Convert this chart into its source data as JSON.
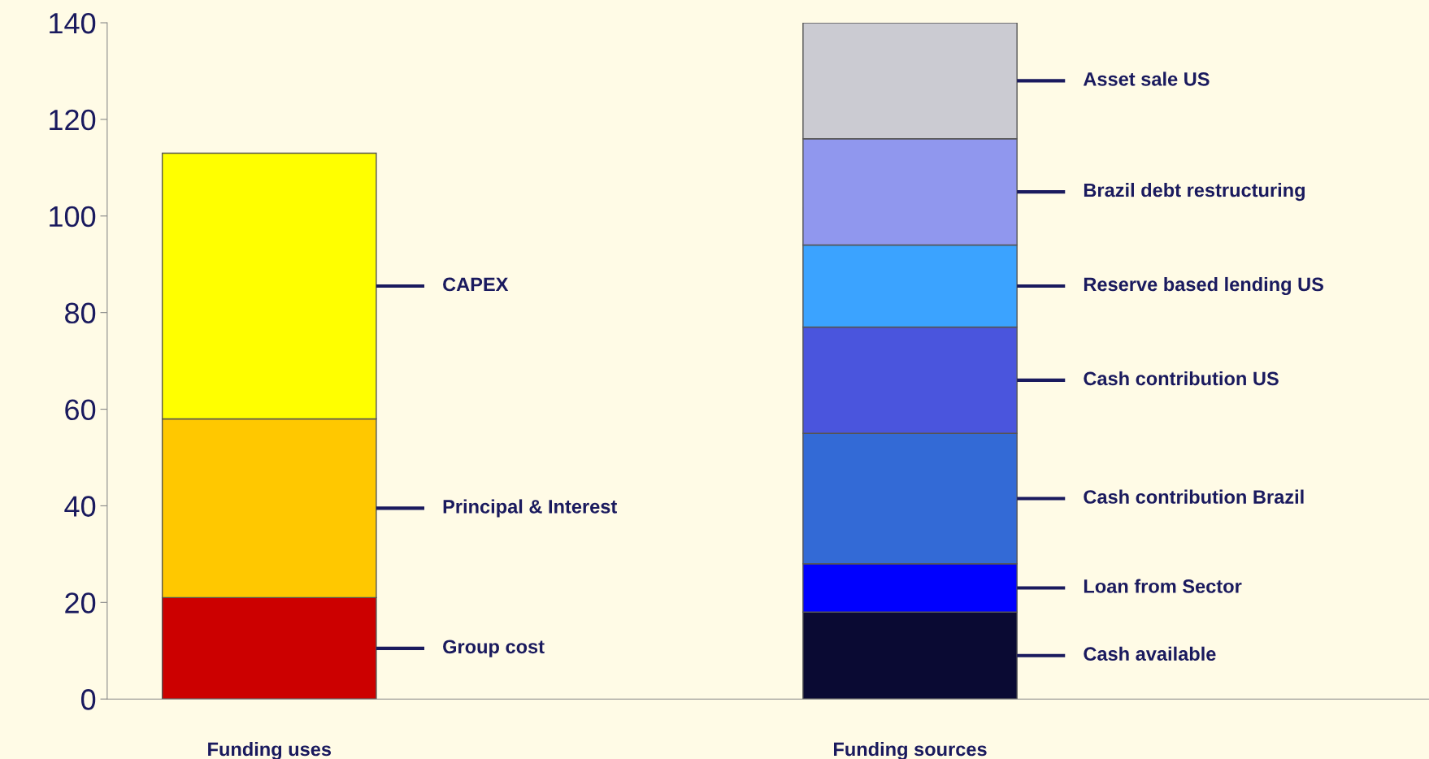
{
  "chart_data": {
    "type": "bar",
    "stacked": true,
    "legend": false,
    "grid": false,
    "categories": [
      "Funding uses",
      "Funding sources"
    ],
    "ylim": [
      0,
      140
    ],
    "yticks": [
      0,
      20,
      40,
      60,
      80,
      100,
      120,
      140
    ],
    "series": [
      {
        "name": "Group cost",
        "color": "#cc0000",
        "values": [
          21,
          null
        ]
      },
      {
        "name": "Principal & Interest",
        "color": "#ffc800",
        "values": [
          37,
          null
        ]
      },
      {
        "name": "CAPEX",
        "color": "#ffff00",
        "values": [
          55,
          null
        ]
      },
      {
        "name": "Cash available",
        "color": "#0a0a33",
        "values": [
          null,
          18
        ]
      },
      {
        "name": "Loan from Sector",
        "color": "#0000ff",
        "values": [
          null,
          10
        ]
      },
      {
        "name": "Cash contribution Brazil",
        "color": "#336ad6",
        "values": [
          null,
          27
        ]
      },
      {
        "name": "Cash contribution US",
        "color": "#4a55dd",
        "values": [
          null,
          22
        ]
      },
      {
        "name": "Reserve based lending US",
        "color": "#3ba3ff",
        "values": [
          null,
          17
        ]
      },
      {
        "name": "Brazil debt restructuring",
        "color": "#9097ee",
        "values": [
          null,
          22
        ]
      },
      {
        "name": "Asset sale US",
        "color": "#cbcbd2",
        "values": [
          null,
          24
        ]
      }
    ]
  }
}
